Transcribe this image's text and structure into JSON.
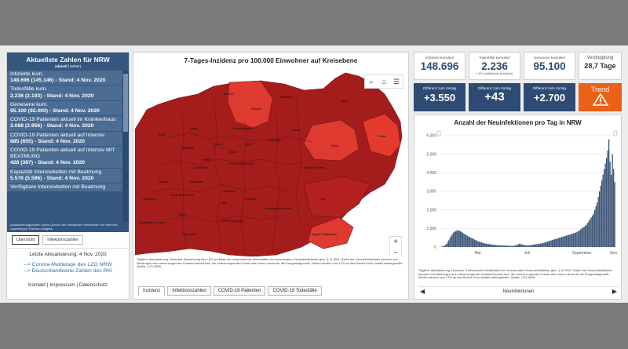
{
  "sidebar": {
    "title": "Aktuellste Zahlen für NRW",
    "subtitle_current": "aktuell",
    "subtitle_prev": "letzter",
    "items": [
      {
        "label": "Infizierte kum.",
        "value": "148.696 (145.146) - Stand: 4 Nov. 2020"
      },
      {
        "label": "Todesfälle kum.",
        "value": "2.236 (2.193) - Stand: 4 Nov. 2020"
      },
      {
        "label": "Genesene kum.",
        "value": "95.100 (92.400) - Stand: 4 Nov. 2020"
      },
      {
        "label": "COVID-19 Patienten aktuell im Krankenhaus",
        "value": "3.088 (2.956) - Stand: 4 Nov. 2020"
      },
      {
        "label": "COVID-19 Patienten aktuell auf Intensiv",
        "value": "685 (655) - Stand: 4 Nov. 2020"
      },
      {
        "label": "COVID-19 Patienten aktuell auf Intensiv MIT BEATMUNG",
        "value": "428 (387) - Stand: 4 Nov. 2020"
      },
      {
        "label": "Kapazität Intensivbetten mit Beatmung",
        "value": "5.576 (5.596) - Stand: 4 Nov. 2020"
      },
      {
        "label": "Verfügbare Intensivbetten mit Beatmung",
        "value": ""
      }
    ],
    "note": "Aktualisierungszyklen sowie Quellen der Indikatoren entnehmen Sie bitte den zugehörigen Themen-Widgets.",
    "tabs": [
      "Übersicht",
      "Infektionszahlen"
    ],
    "update_label": "Letzte Aktualisierung: 4 Nov. 2020",
    "links": [
      "--> Corona-Meldelage des LZG NRW",
      "--> Deutschlandweite Zahlen des RKI"
    ],
    "footer": "Kontakt | Impressum | Datenschutz"
  },
  "map": {
    "title": "7-Tages-Inzidenz pro 100.000 Einwohner auf Kreisebene",
    "labels": [
      "Minden-Lübbecke",
      "Lippe",
      "Steinfurt",
      "Borken",
      "Coesfeld",
      "Warendorf",
      "Gütersloh",
      "Paderborn",
      "Höxter",
      "Kleve",
      "Wesel",
      "Recklinghausen",
      "Hamm",
      "Unna",
      "Soest",
      "Bottrop",
      "Gelsenkirchen",
      "Herne",
      "Dortmund",
      "Duisburg",
      "Essen",
      "Bochum",
      "Krefeld",
      "Viersen",
      "Düsseldorf",
      "Mettmann",
      "Wuppertal",
      "Hagen",
      "Märkischer Kreis",
      "Olpe",
      "Siegen-Wittgenstein",
      "Hochsauerlandkreis",
      "Mönchengladbach",
      "Rhein-Kreis Neuss",
      "Heinsberg",
      "Köln",
      "Rhein-Erft-Kreis",
      "Düren",
      "Aachen",
      "Euskirchen",
      "Bonn",
      "Rhein-Sieg-Kreis",
      "Oberbergischer Kreis",
      "Leverkusen",
      "Solingen",
      "Remscheid",
      "Münster",
      "Bielefeld",
      "Herford",
      "Ennepe-Ruhr-Kreis",
      "Rheinisch-Bergischer Kreis",
      "Städteregion Aachen",
      "Märkischer Kreis"
    ],
    "disclaimer": "Tägliche Aktualisierung. Hinweise: Berechnung des LZG auf Basis der elektronischen Meldedaten der kommunalen Gesundheitsämter gem. § 11 IfSG. Daten der Gesundheitsämter beruhen auf Meldungen des erstversorgenden Krankenhauses bzw. der erstversorgenden Praxis oder eines Labors für die Erregerdiagnostik. Zahlen werden vom LZG an das Robert-Koch-Institut weitergeleitet. Quelle: LZG NRW",
    "tabs": [
      "Inzidenz",
      "Infektionszahlen",
      "COVID-19 Patienten",
      "COVID-19 Todesfälle"
    ]
  },
  "stats": {
    "infizierte_label": "Infizierte kumuliert",
    "infizierte": "148.696",
    "tod_label": "Todesfälle kumuliert",
    "tod": "2.236",
    "tod_sub": "1,5% Letalitätsrate (kumuliert)",
    "genesene_label": "Genesene kumuliert",
    "genesene": "95.100",
    "verdopp_label": "Verdopplung",
    "verdopp": "28,7 Tage",
    "diff1_label": "Differenz zum Vortag",
    "diff1": "+3.550",
    "diff2_label": "Differenz zum Vortag",
    "diff2": "+43",
    "diff3_label": "Differenz zum Vortag",
    "diff3": "+2.700",
    "trend_label": "Trend"
  },
  "chart_data": {
    "type": "bar",
    "title": "Anzahl der Neuinfektionen pro Tag in NRW",
    "xlabel": "",
    "ylabel": "",
    "ylim": [
      0,
      6000
    ],
    "yticks": [
      "0",
      "1.000",
      "2.000",
      "3.000",
      "4.000",
      "5.000",
      "6.000"
    ],
    "xticks": [
      "Mai",
      "Juli",
      "September",
      "Nov"
    ],
    "values": [
      5,
      10,
      20,
      40,
      70,
      110,
      160,
      250,
      360,
      480,
      600,
      700,
      780,
      830,
      860,
      900,
      920,
      880,
      850,
      820,
      760,
      720,
      680,
      640,
      600,
      560,
      530,
      500,
      470,
      440,
      400,
      370,
      340,
      310,
      290,
      270,
      250,
      230,
      210,
      190,
      180,
      170,
      160,
      150,
      140,
      130,
      120,
      115,
      110,
      105,
      100,
      95,
      90,
      90,
      85,
      80,
      80,
      75,
      75,
      70,
      70,
      65,
      65,
      70,
      80,
      100,
      120,
      150,
      180,
      160,
      140,
      120,
      110,
      100,
      95,
      90,
      95,
      100,
      110,
      120,
      130,
      140,
      150,
      160,
      170,
      180,
      190,
      200,
      220,
      240,
      260,
      280,
      300,
      320,
      340,
      360,
      380,
      400,
      420,
      440,
      460,
      480,
      500,
      520,
      540,
      560,
      580,
      600,
      620,
      640,
      660,
      680,
      700,
      720,
      740,
      760,
      780,
      820,
      860,
      900,
      950,
      1000,
      1050,
      1100,
      1150,
      1200,
      1300,
      1400,
      1500,
      1600,
      1700,
      1800,
      2000,
      2200,
      2400,
      2700,
      3000,
      3300,
      3600,
      3900,
      4200,
      4500,
      4800,
      5200,
      5800,
      4600,
      3900,
      5000,
      4200,
      3500
    ],
    "caption": "Neuinfektionen",
    "disclaimer": "Tägliche Aktualisierung. Hinweise: Elektronische Meldedaten der kommunalen Gesundheitsämter gem. § 11 IfSG. Daten der Gesundheitsämter beruhen auf Meldungen des erstversorgenden Krankenhauses bzw. der erstversorgenden Praxis oder eines Labors für die Erregerdiagnostik. Zahlen werden vom LZG an das Robert-Koch-Institut weitergeleitet. Quelle: LZG NRW"
  },
  "colors": {
    "navy": "#34567f",
    "dark_red": "#9e1a1a",
    "mid_red": "#b52020",
    "light_red": "#e33a2c",
    "trend": "#ea6117"
  }
}
